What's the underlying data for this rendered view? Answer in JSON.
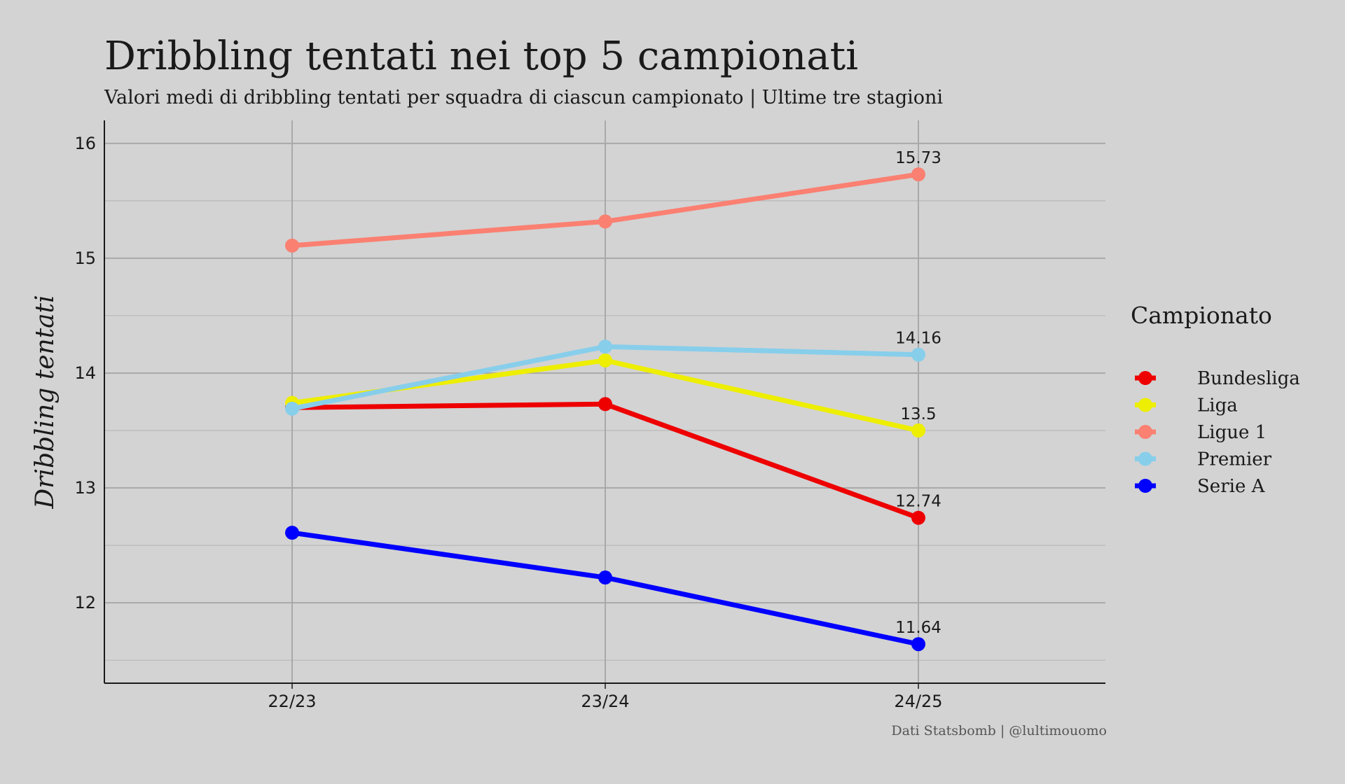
{
  "chart_data": {
    "type": "line",
    "title": "Dribbling tentati nei top 5 campionati",
    "subtitle": "Valori medi di dribbling tentati per squadra di ciascun campionato | Ultime tre stagioni",
    "caption": "Dati Statsbomb | @lultimouomo",
    "xlabel": "",
    "ylabel": "Dribbling tentati",
    "categories": [
      "22/23",
      "23/24",
      "24/25"
    ],
    "ylim": [
      11.3,
      16.2
    ],
    "yticks": [
      12,
      13,
      14,
      15,
      16
    ],
    "grid": true,
    "legend": {
      "title": "Campionato",
      "placement": "right"
    },
    "series": [
      {
        "name": "Bundesliga",
        "color": "#ee0000",
        "values": [
          13.7,
          13.73,
          12.74
        ],
        "end_label": "12.74"
      },
      {
        "name": "Liga",
        "color": "#eeee00",
        "values": [
          13.74,
          14.11,
          13.5
        ],
        "end_label": "13.5"
      },
      {
        "name": "Ligue 1",
        "color": "#fa8072",
        "values": [
          15.11,
          15.32,
          15.73
        ],
        "end_label": "15.73"
      },
      {
        "name": "Premier",
        "color": "#87ceeb",
        "values": [
          13.69,
          14.23,
          14.16
        ],
        "end_label": "14.16"
      },
      {
        "name": "Serie A",
        "color": "#0000ff",
        "values": [
          12.61,
          12.22,
          11.64
        ],
        "end_label": "11.64"
      }
    ]
  }
}
